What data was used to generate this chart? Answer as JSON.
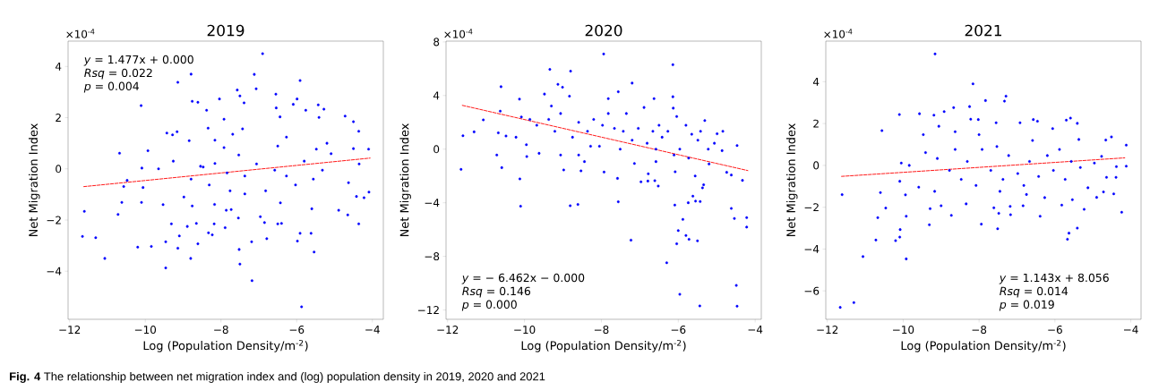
{
  "chart_data": [
    {
      "type": "scatter",
      "title": "2019",
      "xlabel": "Log (Population Density/m$^{-2}$)",
      "ylabel": "Net Migration Index",
      "annotations": [
        "×10$^{-4}$",
        "*y* = 1.477x + 0.000",
        "*Rsq* = 0.022",
        "*p* = 0.004",
        "**Fig. 4**  The relationship between net migration index and (log) population density in 2019, 2020 and 2021"
      ],
      "xlim": [
        -12.04,
        -3.71
      ],
      "ylim": [
        -5.88,
        4.99
      ],
      "xticks": [
        {
          "value": -12,
          "label": "−12"
        },
        {
          "value": -10,
          "label": "−10"
        },
        {
          "value": -8,
          "label": "−8"
        },
        {
          "value": -6,
          "label": "−6"
        },
        {
          "value": -4,
          "label": "−4"
        }
      ],
      "yticks": [
        {
          "value": -4,
          "label": "−4"
        },
        {
          "value": -2,
          "label": "−2"
        },
        0,
        2,
        4
      ],
      "grid": false,
      "series": [
        {
          "marker": "circle",
          "color": "#0000ff",
          "x": [
            -11.66,
            -11.61,
            -11.31,
            -11.07,
            -10.72,
            -10.68,
            -10.62,
            -10.57,
            -10.48,
            -10.2,
            -10.11,
            -10.09,
            -10.1,
            -10.06,
            -9.93,
            -9.84,
            -9.65,
            -9.53,
            -9.46,
            -9.43,
            -9.46,
            -9.31,
            -9.28,
            -9.14,
            -9.16,
            -9.14,
            -9.1,
            -8.98,
            -8.89,
            -8.84,
            -8.79,
            -8.8,
            -8.76,
            -8.76,
            -8.61,
            -8.61,
            -8.65,
            -8.54,
            -8.38,
            -8.34,
            -8.33,
            -8.23,
            -8.18,
            -8.17,
            -8.04,
            -7.92,
            -7.89,
            -7.86,
            -7.73,
            -7.57,
            -7.52,
            -7.5,
            -7.5,
            -7.54,
            -7.39,
            -7.43,
            -7.18,
            -7.12,
            -7.07,
            -7.19,
            -6.9,
            -6.96,
            -6.79,
            -6.85,
            -6.55,
            -6.54,
            -6.44,
            -6.5,
            -6.4,
            -6.43,
            -6.09,
            -5.99,
            -5.91,
            -5.91,
            -5.98,
            -5.87,
            -5.76,
            -5.62,
            -5.54,
            -5.6,
            -5.43,
            -5.28,
            -5.41,
            -5.2,
            -5.09,
            -4.89,
            -4.72,
            -4.65,
            -4.5,
            -4.36,
            -4.36,
            -4.42,
            -4.22,
            -4.1,
            -4.09,
            -4.35,
            -4.5,
            -4.63,
            -8.47,
            -8.16,
            -7.92,
            -7.84,
            -7.53,
            -7.37,
            -7.06,
            -6.82,
            -6.58,
            -6.27,
            -6.03,
            -5.8,
            -5.56,
            -5.32,
            -8.31,
            -8.79,
            -9.26,
            -8.16,
            -7.69,
            -6.5,
            -6.27,
            -7.76,
            -7.37,
            -5.48
          ],
          "values": [
            -2.64,
            -1.66,
            -2.69,
            -3.5,
            -1.78,
            0.61,
            -1.31,
            -0.69,
            -0.45,
            -3.06,
            2.47,
            0.03,
            -1.31,
            -0.73,
            0.71,
            -3.03,
            0.0,
            -1.4,
            -3.87,
            1.4,
            -2.85,
            -2.15,
            1.33,
            3.38,
            1.45,
            -3.1,
            -2.62,
            -1.1,
            -2.25,
            1.1,
            3.7,
            -3.5,
            2.64,
            -1.45,
            2.6,
            -2.93,
            -2.13,
            0.1,
            2.29,
            1.59,
            -2.5,
            -2.58,
            -2.15,
            -1.39,
            2.73,
            1.94,
            -2.3,
            -1.62,
            -1.59,
            3.08,
            -3.15,
            -3.72,
            2.85,
            -1.92,
            2.58,
            1.56,
            -4.37,
            3.69,
            3.13,
            -2.85,
            4.5,
            -1.87,
            -2.73,
            -2.1,
            2.92,
            2.38,
            2.03,
            -2.15,
            -2.13,
            -1.33,
            2.52,
            2.73,
            3.45,
            -2.52,
            -2.82,
            -5.39,
            2.29,
            -2.52,
            -3.25,
            -1.56,
            2.5,
            2.33,
            2.01,
            1.0,
            0.59,
            -1.62,
            2.06,
            -1.8,
            1.84,
            1.47,
            -2.15,
            -1.08,
            -1.13,
            0.77,
            -0.91,
            0.19,
            0.79,
            -0.54,
            0.07,
            0.21,
            0.83,
            -0.16,
            0.54,
            -0.28,
            0.19,
            -0.86,
            -0.05,
            -0.28,
            -0.63,
            0.3,
            -0.4,
            -0.05,
            -0.63,
            -0.4,
            0.3,
            1.12,
            1.35,
            0.89,
            1.24,
            -0.86,
            -0.98,
            0.77
          ]
        },
        {
          "type": "line",
          "marker": "none",
          "line_style": "dashed",
          "color": "#ff0000",
          "x": [
            -11.66,
            -4.06
          ],
          "values": [
            -0.7,
            0.42
          ]
        }
      ]
    },
    {
      "type": "scatter",
      "title": "2020",
      "xlabel": "Log (Population Density/m$^{-2}$)",
      "ylabel": "Net Migration Index",
      "annotations": [
        "×10$^{-4}$",
        "*y* =  − 6.462x − 0.000",
        "*Rsq* = 0.146",
        "*p* = 0.000"
      ],
      "xlim": [
        -12.04,
        -3.84
      ],
      "ylim": [
        -12.7,
        8.06
      ],
      "xticks": [
        {
          "value": -12,
          "label": "−12"
        },
        {
          "value": -10,
          "label": "−10"
        },
        {
          "value": -8,
          "label": "−8"
        },
        {
          "value": -6,
          "label": "−6"
        },
        {
          "value": -4,
          "label": "−4"
        }
      ],
      "yticks": [
        {
          "value": -12,
          "label": "−12"
        },
        {
          "value": -8,
          "label": "−8"
        },
        {
          "value": -4,
          "label": "−4"
        },
        0,
        4,
        8
      ],
      "grid": false,
      "series": [
        {
          "marker": "circle",
          "color": "#0000ff",
          "x": [
            -11.65,
            -11.6,
            -11.31,
            -11.07,
            -10.72,
            -10.68,
            -10.63,
            -10.61,
            -10.59,
            -10.48,
            -10.22,
            -10.13,
            -10.12,
            -10.1,
            -10.08,
            -9.95,
            -9.94,
            -9.86,
            -9.62,
            -9.48,
            -9.34,
            -9.3,
            -9.13,
            -9.01,
            -8.98,
            -8.8,
            -8.81,
            -8.83,
            -8.61,
            -8.53,
            -8.44,
            -7.94,
            -7.93,
            -7.82,
            -7.58,
            -7.56,
            -7.56,
            -7.23,
            -7.2,
            -7.14,
            -6.97,
            -6.78,
            -6.79,
            -6.61,
            -6.52,
            -6.63,
            -6.58,
            -6.3,
            -6.14,
            -6.14,
            -6.13,
            -6.09,
            -6.08,
            -6.04,
            -6.0,
            -5.96,
            -5.88,
            -5.8,
            -5.74,
            -5.72,
            -5.62,
            -5.56,
            -5.55,
            -5.5,
            -5.44,
            -5.43,
            -5.37,
            -5.34,
            -5.31,
            -5.22,
            -5.2,
            -5.06,
            -4.99,
            -4.84,
            -4.86,
            -4.74,
            -4.62,
            -4.62,
            -4.54,
            -4.49,
            -4.47,
            -4.47,
            -4.33,
            -4.22,
            -4.22,
            -9.68,
            -9.37,
            -9.21,
            -9.06,
            -8.75,
            -8.59,
            -8.36,
            -8.2,
            -8.05,
            -7.97,
            -7.82,
            -7.66,
            -7.43,
            -7.35,
            -7.2,
            -7.04,
            -6.89,
            -6.81,
            -6.66,
            -6.5,
            -6.42,
            -6.27,
            -6.04,
            -5.96,
            -5.8,
            -5.65,
            -5.49,
            -5.42,
            -8.59,
            -8.28,
            -7.51,
            -6.58,
            -6.11,
            -5.73,
            -9.06
          ],
          "values": [
            -1.51,
            1.0,
            1.29,
            2.18,
            -0.44,
            1.22,
            2.84,
            4.66,
            -1.38,
            0.98,
            0.89,
            3.73,
            -2.22,
            -4.26,
            2.4,
            0.33,
            -0.55,
            2.22,
            -0.31,
            4.11,
            5.95,
            3.22,
            4.84,
            4.62,
            -1.55,
            5.82,
            -4.22,
            3.95,
            -4.13,
            -1.62,
            -0.93,
            7.1,
            -1.71,
            3.77,
            -2.18,
            -3.93,
            4.28,
            -6.79,
            4.93,
            -1.07,
            -2.44,
            -1.84,
            -2.38,
            -2.35,
            -2.75,
            3.77,
            -0.93,
            -8.48,
            6.3,
            3.91,
            3.06,
            -4.17,
            -1.69,
            -7.06,
            -6.08,
            -10.83,
            -5.24,
            -6.44,
            -4.0,
            -6.73,
            -3.51,
            -2.0,
            -3.88,
            -6.84,
            -11.7,
            -3.91,
            -2.89,
            -2.66,
            2.13,
            0.0,
            -1.11,
            0.44,
            1.15,
            1.33,
            -0.11,
            -1.73,
            -1.93,
            -4.42,
            -5.17,
            -10.17,
            -11.72,
            0.27,
            -2.33,
            -5.11,
            -5.82,
            1.78,
            2.22,
            1.33,
            2.66,
            0.89,
            2.0,
            1.33,
            2.22,
            0.22,
            1.78,
            2.66,
            1.55,
            1.33,
            2.66,
            0.67,
            1.55,
            3.11,
            0.44,
            1.33,
            1.78,
            0.89,
            1.33,
            2.44,
            0.0,
            1.78,
            1.11,
            0.67,
            1.33,
            -0.44,
            0.22,
            0.0,
            0.0,
            -0.44,
            -0.67,
            -0.44
          ]
        },
        {
          "type": "line",
          "marker": "none",
          "line_style": "dashed",
          "color": "#ff0000",
          "x": [
            -11.65,
            -4.19
          ],
          "values": [
            3.29,
            -1.6
          ]
        }
      ]
    },
    {
      "type": "scatter",
      "title": "2021",
      "xlabel": "Log (Population Density/m$^{-2}$)",
      "ylabel": "Net Migration Index",
      "annotations": [
        "×10$^{-4}$",
        "*y* = 1.143x + 8.056",
        "*Rsq* = 0.014",
        "*p* = 0.019"
      ],
      "xlim": [
        -12.04,
        -3.73
      ],
      "ylim": [
        -7.36,
        5.94
      ],
      "xticks": [
        {
          "value": -12,
          "label": "−12"
        },
        {
          "value": -10,
          "label": "−10"
        },
        {
          "value": -8,
          "label": "−8"
        },
        {
          "value": -6,
          "label": "−6"
        },
        {
          "value": -4,
          "label": "−4"
        }
      ],
      "yticks": [
        {
          "value": -6,
          "label": "−6"
        },
        {
          "value": -4,
          "label": "−4"
        },
        {
          "value": -2,
          "label": "−2"
        },
        0,
        2,
        4
      ],
      "grid": false,
      "series": [
        {
          "marker": "circle",
          "color": "#0000ff",
          "x": [
            -11.66,
            -11.61,
            -11.3,
            -11.06,
            -10.72,
            -10.67,
            -10.6,
            -10.56,
            -10.46,
            -10.2,
            -10.1,
            -10.09,
            -10.08,
            -10.09,
            -10.05,
            -9.92,
            -9.92,
            -9.94,
            -9.84,
            -9.57,
            -9.59,
            -9.47,
            -9.31,
            -9.29,
            -9.16,
            -9.19,
            -9.17,
            -9.06,
            -9.0,
            -8.92,
            -8.73,
            -8.67,
            -8.34,
            -8.25,
            -8.16,
            -8.22,
            -8.02,
            -7.94,
            -7.83,
            -7.61,
            -7.55,
            -7.51,
            -7.48,
            -7.33,
            -7.29,
            -7.17,
            -7.18,
            -6.92,
            -6.84,
            -6.57,
            -6.46,
            -6.39,
            -6.27,
            -6.06,
            -5.82,
            -5.7,
            -5.59,
            -5.67,
            -5.63,
            -5.54,
            -5.41,
            -5.41,
            -5.37,
            -5.23,
            -5.13,
            -4.96,
            -4.9,
            -4.77,
            -4.72,
            -4.66,
            -4.64,
            -4.51,
            -4.45,
            -4.39,
            -4.38,
            -4.24,
            -4.12,
            -4.12,
            -9.41,
            -9.1,
            -8.78,
            -8.63,
            -8.47,
            -8.31,
            -8.08,
            -7.92,
            -7.69,
            -7.53,
            -7.37,
            -7.22,
            -6.98,
            -6.82,
            -6.67,
            -6.43,
            -6.2,
            -6.04,
            -5.88,
            -5.73,
            -5.57,
            -5.33,
            -8.63,
            -8.0,
            -6.59,
            -7.45,
            -6.75
          ],
          "values": [
            -6.79,
            -1.4,
            -6.56,
            -4.36,
            -3.57,
            -2.5,
            -1.3,
            1.66,
            -2.04,
            -3.6,
            2.43,
            -3.43,
            -3.07,
            -0.76,
            0.11,
            -4.47,
            -2.43,
            -1.41,
            0.0,
            2.47,
            -1.04,
            1.47,
            -2.84,
            -2.07,
            5.33,
            2.4,
            -1.24,
            1.87,
            -1.93,
            2.57,
            -2.39,
            2.76,
            -1.84,
            2.81,
            3.9,
            2.21,
            2.19,
            -2.81,
            3.1,
            -2.03,
            2.04,
            -3.03,
            -2.29,
            3.07,
            3.31,
            -2.36,
            -1.96,
            2.04,
            -1.93,
            2.19,
            2.11,
            -2.43,
            -1.54,
            1.76,
            -1.9,
            2.16,
            2.26,
            -3.53,
            -3.24,
            -1.64,
            2.01,
            -3.0,
            1.24,
            -2.1,
            -1.07,
            0.11,
            -1.53,
            0.43,
            -1.27,
            1.21,
            -0.57,
            1.36,
            -1.36,
            -0.57,
            -0.06,
            -2.24,
            0.97,
            -0.04,
            0.61,
            0.33,
            -0.24,
            0.76,
            -0.67,
            0.19,
            -0.96,
            0.76,
            -0.24,
            0.9,
            -0.67,
            0.47,
            -0.39,
            -0.96,
            0.19,
            -0.53,
            0.47,
            -0.24,
            0.76,
            -0.67,
            0.19,
            -0.1,
            1.61,
            1.47,
            1.19,
            -1.24,
            -1.39
          ]
        },
        {
          "type": "line",
          "marker": "none",
          "line_style": "dashed",
          "color": "#ff0000",
          "x": [
            -11.66,
            -4.16
          ],
          "values": [
            -0.53,
            0.36
          ]
        }
      ]
    }
  ]
}
